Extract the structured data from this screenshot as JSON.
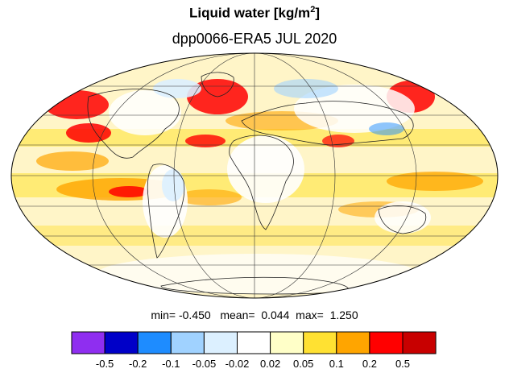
{
  "title": {
    "main": "Liquid water  [kg/m",
    "superscript": "2",
    "close": "]",
    "subtitle": "dpp0066-ERA5 JUL 2020"
  },
  "stats": {
    "min_label": "min=",
    "min_value": "-0.450",
    "mean_label": "mean=",
    "mean_value": "0.044",
    "max_label": "max=",
    "max_value": "1.250"
  },
  "colorbar": {
    "colors": [
      "#8f2ef0",
      "#0000c8",
      "#1e8cff",
      "#a0d2ff",
      "#dcf0ff",
      "#ffffff",
      "#ffffc8",
      "#ffe132",
      "#ffa500",
      "#ff0000",
      "#c80000"
    ],
    "labels": [
      "-0.5",
      "-0.2",
      "-0.1",
      "-0.05",
      "-0.02",
      "0.02",
      "0.05",
      "0.1",
      "0.2",
      "0.5"
    ]
  },
  "map": {
    "projection": "Mollweide",
    "background_color": "#fff5c8"
  }
}
